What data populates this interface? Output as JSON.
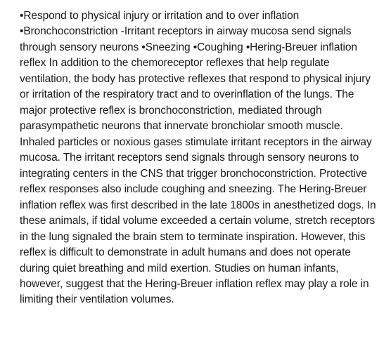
{
  "document": {
    "text_color": "#1a1a1a",
    "background_color": "#ffffff",
    "font_size": 15.5,
    "line_height": 1.45,
    "paragraph": "•Respond to physical injury or irritation and to over inflation •Bronchoconstriction -Irritant receptors in airway mucosa send signals through sensory neurons •Sneezing •Coughing •Hering-Breuer inflation reflex In addition to the chemoreceptor reflexes that help regulate ventilation, the body has protective reflexes that respond to physical injury or irritation of the respiratory tract and to overinflation of the lungs. The major protective reflex is bronchoconstriction, mediated through parasympathetic neurons that innervate bronchiolar smooth muscle. Inhaled particles or noxious gases stimulate irritant receptors in the airway mucosa. The irritant receptors send signals through sensory neurons to integrating centers in the CNS that trigger bronchoconstriction. Protective reflex responses also include coughing and sneezing. The Hering-Breuer inflation reflex was first described in the late 1800s in anesthetized dogs. In these animals, if tidal volume exceeded a certain volume, stretch receptors in the lung signaled the brain stem to terminate inspiration. However, this reflex is difficult to demonstrate in adult humans and does not operate during quiet breathing and mild exertion. Studies on human infants, however, suggest that the Hering-Breuer inflation reflex may play a role in limiting their ventilation volumes."
  }
}
